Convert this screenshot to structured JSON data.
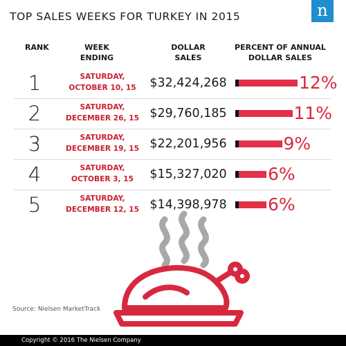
{
  "title": "TOP SALES WEEKS FOR TURKEY IN 2015",
  "logo_letter": "n",
  "headers": {
    "rank": "RANK",
    "week_line1": "WEEK",
    "week_line2": "ENDING",
    "sales_line1": "DOLLAR",
    "sales_line2": "SALES",
    "pct_line1": "PERCENT OF ANNUAL",
    "pct_line2": "DOLLAR SALES"
  },
  "chart_data": {
    "type": "table",
    "rows": [
      {
        "rank": "1",
        "week_line1": "SATURDAY,",
        "week_line2": "OCTOBER 10, 15",
        "sales": "$32,424,268",
        "percent": 12,
        "percent_label": "12%"
      },
      {
        "rank": "2",
        "week_line1": "SATURDAY,",
        "week_line2": "DECEMBER 26, 15",
        "sales": "$29,760,185",
        "percent": 11,
        "percent_label": "11%"
      },
      {
        "rank": "3",
        "week_line1": "SATURDAY,",
        "week_line2": "DECEMBER 19, 15",
        "sales": "$22,201,956",
        "percent": 9,
        "percent_label": "9%"
      },
      {
        "rank": "4",
        "week_line1": "SATURDAY,",
        "week_line2": "OCTOBER 3, 15",
        "sales": "$15,327,020",
        "percent": 6,
        "percent_label": "6%"
      },
      {
        "rank": "5",
        "week_line1": "SATURDAY,",
        "week_line2": "DECEMBER 12, 15",
        "sales": "$14,398,978",
        "percent": 6,
        "percent_label": "6%"
      }
    ]
  },
  "source": "Source: Nielsen MarketTrack",
  "copyright": "Copyright © 2016 The Nielsen Company",
  "colors": {
    "accent_red": "#d8283f",
    "bar_red": "#e03148",
    "logo_blue": "#1f8ecf",
    "steam_gray": "#a8a8a8",
    "footer_black": "#000000"
  },
  "icons": [
    "nielsen-logo-icon",
    "steam-icon",
    "roast-turkey-icon"
  ]
}
